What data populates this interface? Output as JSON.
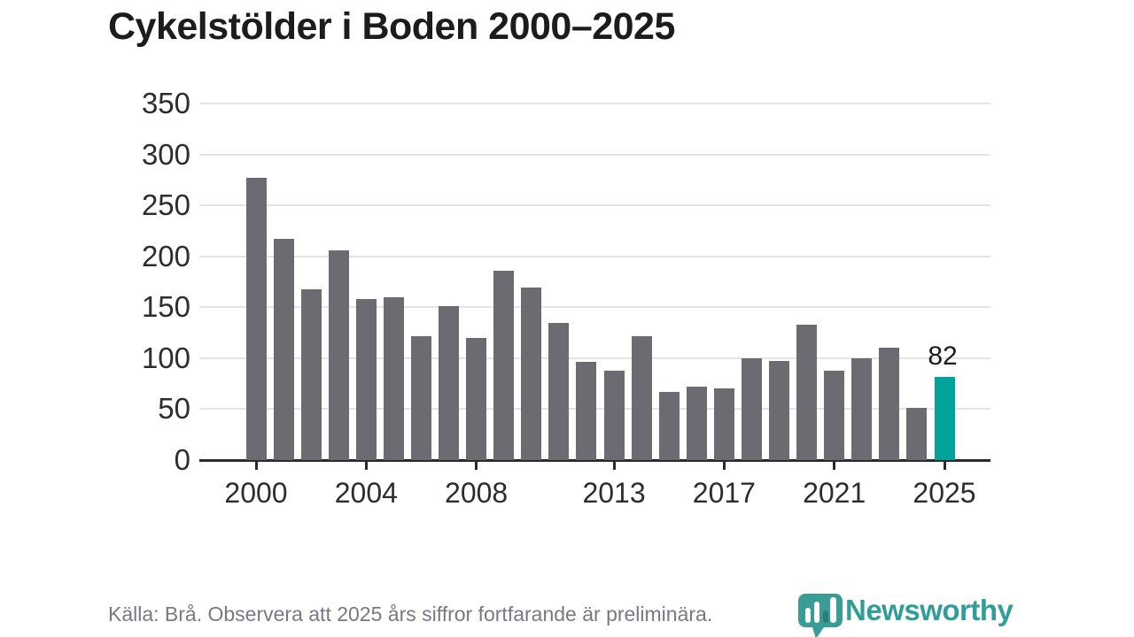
{
  "title": "Cykelstölder i Boden 2000–2025",
  "footer": {
    "source_note": "Källa: Brå. Observera att 2025 års siffror fortfarande är preliminära."
  },
  "logo": {
    "brand_name": "Newsworthy"
  },
  "colors": {
    "bar": "#6c6b71",
    "highlight_bar": "#00a29a",
    "gridline": "#e4e4e4",
    "axis": "#2b2b2b",
    "title_text": "#1c1c1c",
    "tick_text": "#2d2d2d",
    "footer_text": "#7a7880",
    "logo_teal": "#3b9c96",
    "logo_dark_teal": "#2a7d78"
  },
  "chart_data": {
    "type": "bar",
    "title": "Cykelstölder i Boden 2000–2025",
    "xlabel": "",
    "ylabel": "",
    "x": [
      2000,
      2001,
      2002,
      2003,
      2004,
      2005,
      2006,
      2007,
      2008,
      2009,
      2010,
      2011,
      2012,
      2013,
      2014,
      2015,
      2016,
      2017,
      2018,
      2019,
      2020,
      2021,
      2022,
      2023,
      2024,
      2025
    ],
    "values": [
      277,
      217,
      168,
      206,
      158,
      160,
      122,
      151,
      120,
      186,
      169,
      135,
      96,
      88,
      122,
      67,
      72,
      70,
      100,
      97,
      133,
      88,
      100,
      110,
      51,
      82
    ],
    "highlight_index": 25,
    "highlight_label": "82",
    "ylim": [
      0,
      350
    ],
    "yticks": [
      0,
      50,
      100,
      150,
      200,
      250,
      300,
      350
    ],
    "xticks": [
      2000,
      2004,
      2008,
      2013,
      2017,
      2021,
      2025
    ],
    "grid": true,
    "legend_position": "none"
  }
}
